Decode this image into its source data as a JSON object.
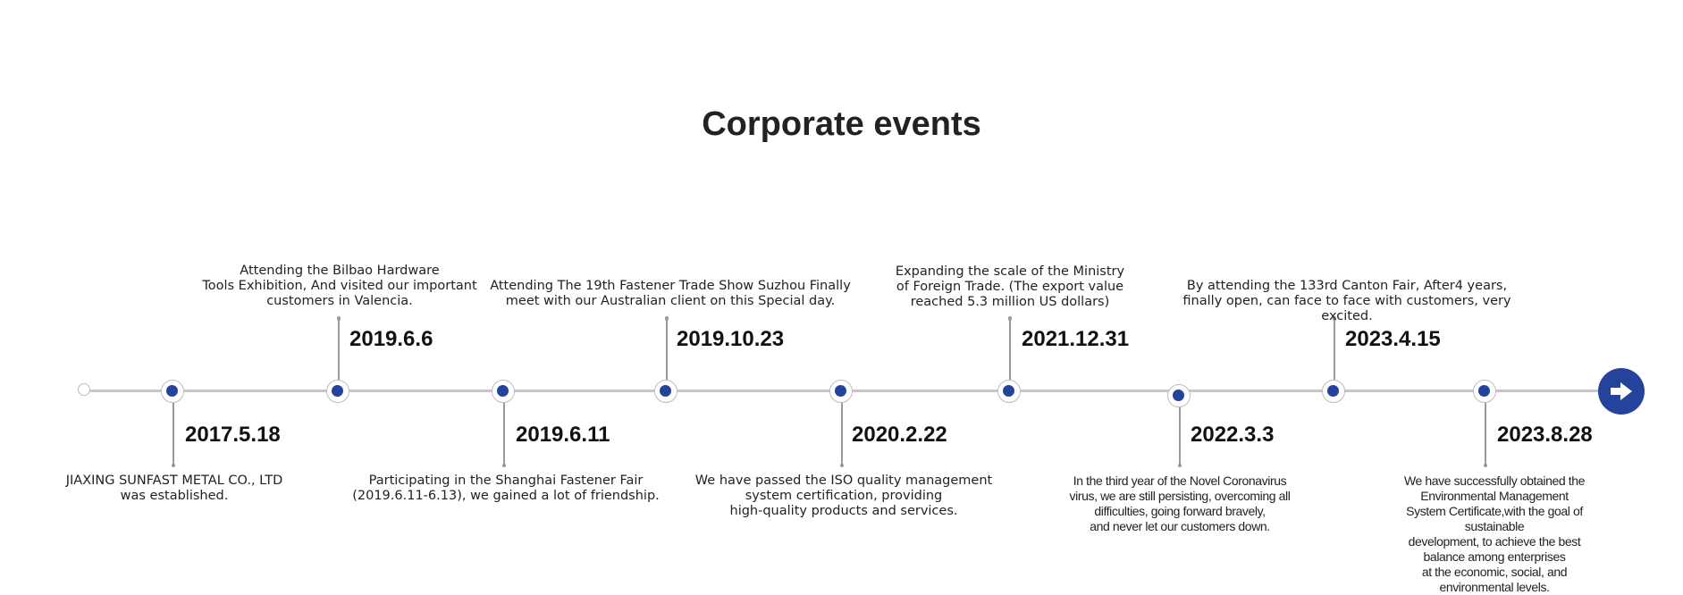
{
  "page": {
    "title": "Corporate events"
  },
  "colors": {
    "accent": "#24439a",
    "axis": "#c6c6c6"
  },
  "events": [
    {
      "date": "2017.5.18",
      "description": "JIAXING SUNFAST METAL CO., LTD\nwas established."
    },
    {
      "date": "2019.6.6",
      "description": "Attending the Bilbao Hardware\nTools Exhibition, And visited our important\ncustomers in Valencia."
    },
    {
      "date": "2019.6.11",
      "description": "Participating in the Shanghai Fastener Fair\n(2019.6.11-6.13), we gained a lot of friendship."
    },
    {
      "date": "2019.10.23",
      "description": "Attending The 19th Fastener Trade Show Suzhou Finally\nmeet with our Australian client on this Special day."
    },
    {
      "date": "2020.2.22",
      "description": "We have passed the ISO quality management\nsystem certification, providing\nhigh-quality products and services."
    },
    {
      "date": "2021.12.31",
      "description": "Expanding the scale of the Ministry\nof Foreign Trade. (The export value\nreached 5.3 million US dollars)"
    },
    {
      "date": "2022.3.3",
      "description": "In the third year of the Novel Coronavirus\nvirus, we are still persisting, overcoming all\ndifficulties, going forward bravely,\nand never let our customers down."
    },
    {
      "date": "2023.4.15",
      "description": "By attending the 133rd Canton Fair, After4 years,\nfinally open, can face to face with customers, very excited."
    },
    {
      "date": "2023.8.28",
      "description": "We have successfully obtained the Environmental Management\nSystem Certificate,with the goal of sustainable\ndevelopment, to achieve the best balance among enterprises\nat the economic, social, and environmental levels."
    }
  ],
  "controls": {
    "next_icon": "arrow-right-icon"
  }
}
